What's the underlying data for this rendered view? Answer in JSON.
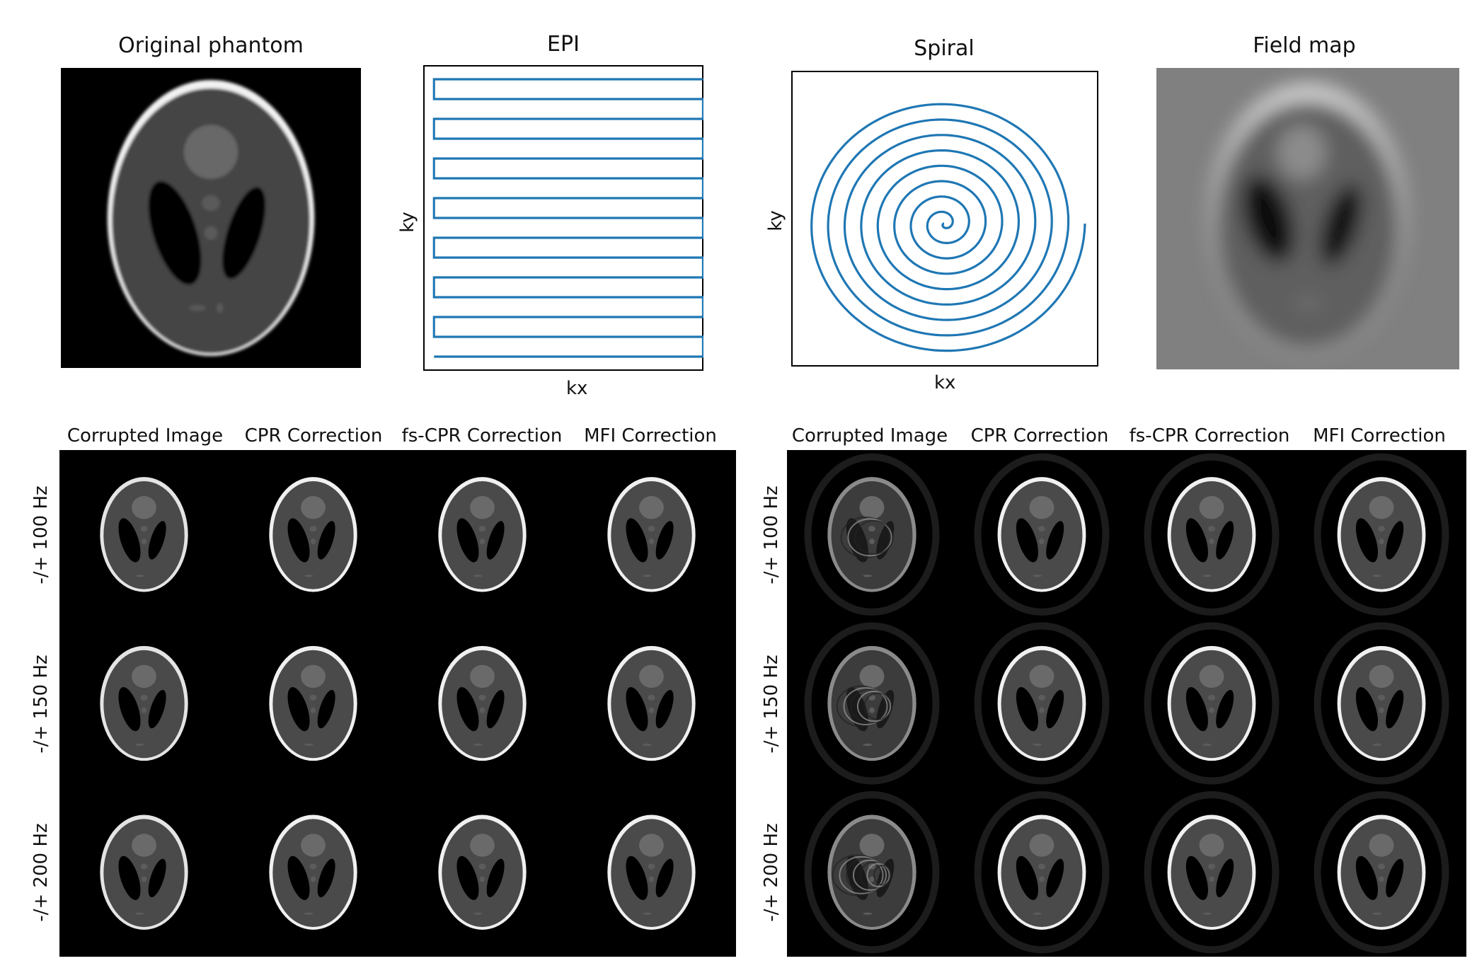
{
  "top_row": {
    "original_phantom_title": "Original phantom",
    "epi_title": "EPI",
    "spiral_title": "Spiral",
    "field_map_title": "Field map",
    "epi_xlabel": "kx",
    "epi_ylabel": "ky",
    "spiral_xlabel": "kx",
    "spiral_ylabel": "ky"
  },
  "epi_grid": {
    "columns": [
      "Corrupted Image",
      "CPR Correction",
      "fs-CPR Correction",
      "MFI Correction"
    ],
    "rows": [
      "-/+ 100 Hz",
      "-/+ 150 Hz",
      "-/+ 200 Hz"
    ]
  },
  "spiral_grid": {
    "columns": [
      "Corrupted Image",
      "CPR Correction",
      "fs-CPR Correction",
      "MFI Correction"
    ],
    "rows": [
      "-/+ 100 Hz",
      "-/+ 150 Hz",
      "-/+ 200 Hz"
    ]
  },
  "colors": {
    "trajectory": "#1f77b4",
    "background": "#000000"
  }
}
